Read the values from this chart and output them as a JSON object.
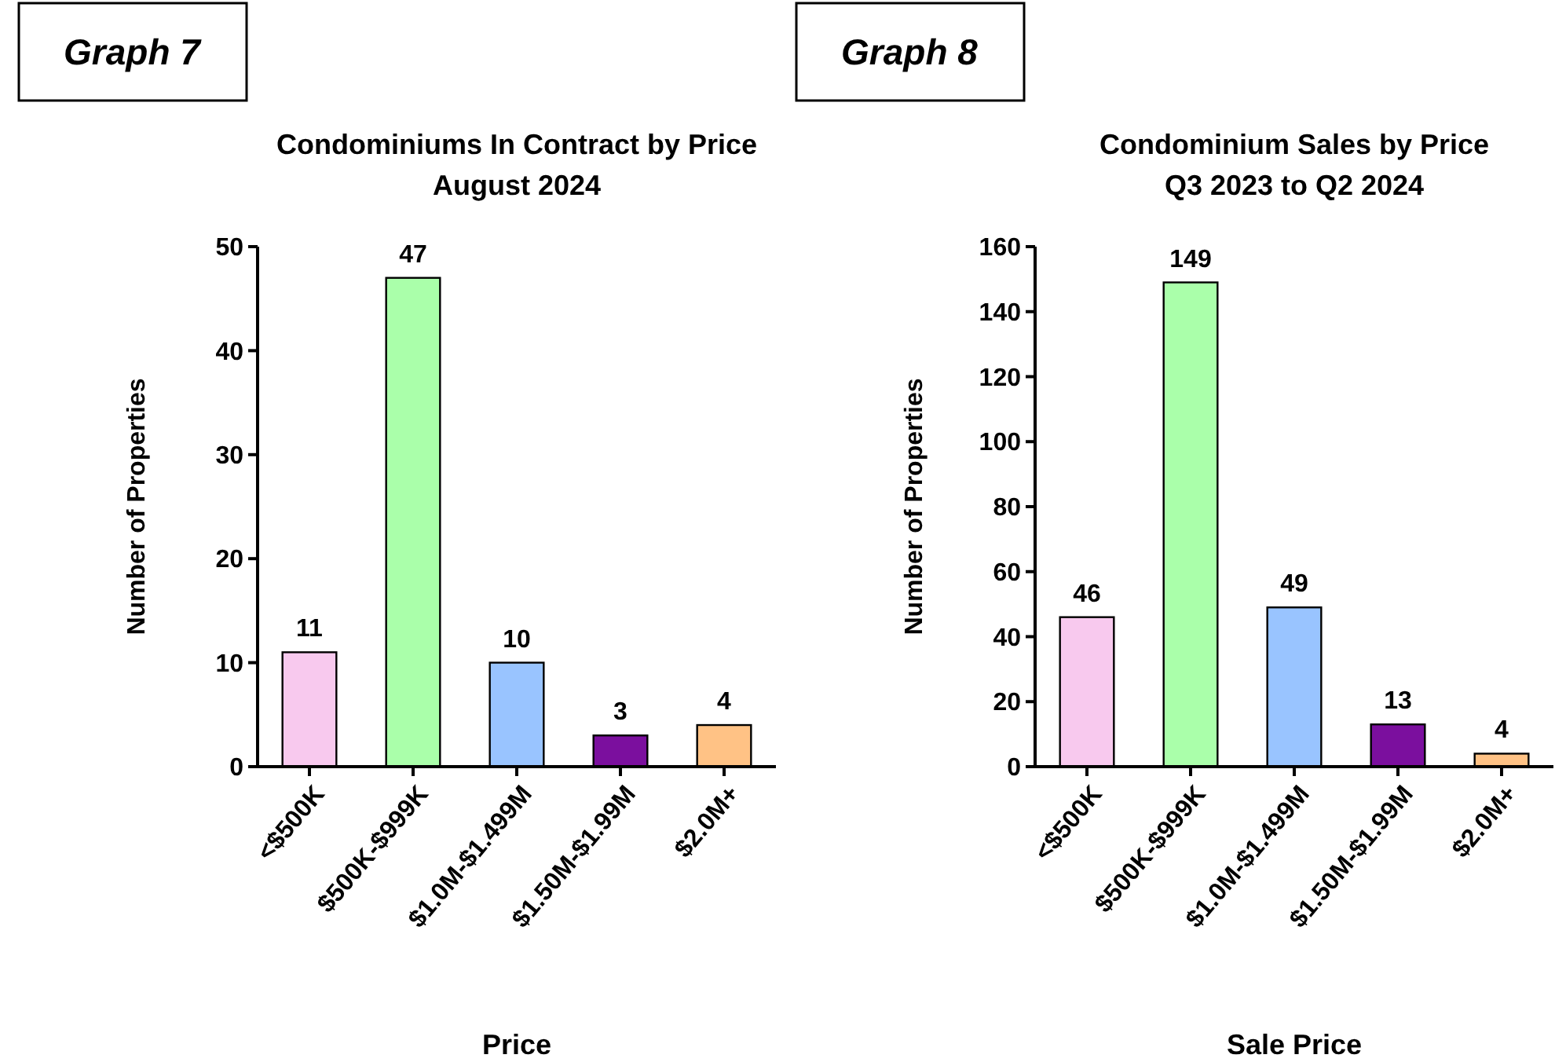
{
  "chart_data": [
    {
      "type": "bar",
      "title": "Condominiums In Contract by Price",
      "subtitle": "August 2024",
      "xlabel": "Price",
      "ylabel": "Number of Properties",
      "annotations": [
        "Graph 7"
      ],
      "categories": [
        "<$500K",
        "$500K-$999K",
        "$1.0M-$1.499M",
        "$1.50M-$1.99M",
        "$2.0M+"
      ],
      "values": [
        11,
        47,
        10,
        3,
        4
      ],
      "colors": [
        "#f8c9ee",
        "#aaffaa",
        "#99c4ff",
        "#7b0f9e",
        "#ffc285"
      ],
      "ylim": [
        0,
        50
      ],
      "yticks": [
        0,
        10,
        20,
        30,
        40,
        50
      ],
      "data_labels": true
    },
    {
      "type": "bar",
      "title": "Condominium Sales by Price",
      "subtitle": "Q3 2023 to Q2 2024",
      "xlabel": "Sale Price",
      "ylabel": "Number of Properties",
      "annotations": [
        "Graph 8"
      ],
      "categories": [
        "<$500K",
        "$500K-$999K",
        "$1.0M-$1.499M",
        "$1.50M-$1.99M",
        "$2.0M+"
      ],
      "values": [
        46,
        149,
        49,
        13,
        4
      ],
      "colors": [
        "#f8c9ee",
        "#aaffaa",
        "#99c4ff",
        "#7b0f9e",
        "#ffc285"
      ],
      "ylim": [
        0,
        160
      ],
      "yticks": [
        0,
        20,
        40,
        60,
        80,
        100,
        120,
        140,
        160
      ],
      "data_labels": true
    }
  ]
}
